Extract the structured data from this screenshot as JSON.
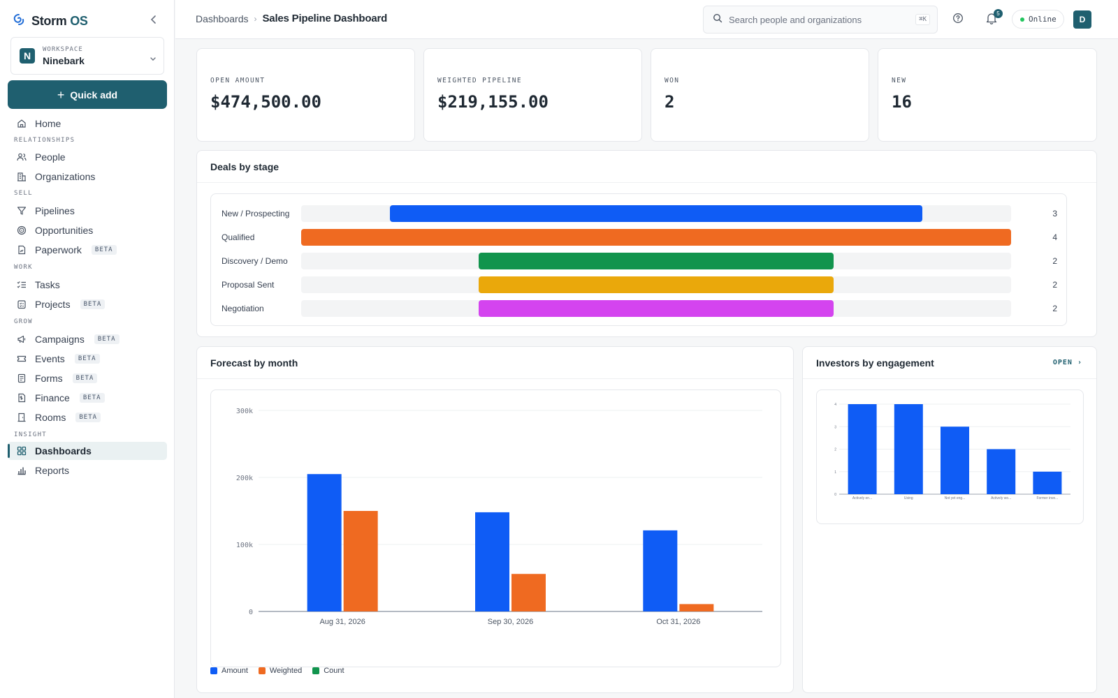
{
  "brand": {
    "name": "Storm",
    "suffix": " OS"
  },
  "workspace": {
    "label": "WORKSPACE",
    "name": "Ninebark",
    "initial": "N"
  },
  "quick_add_label": "Quick add",
  "nav": {
    "home": "Home",
    "sections": {
      "relationships": "RELATIONSHIPS",
      "sell": "SELL",
      "work": "WORK",
      "grow": "GROW",
      "insight": "INSIGHT"
    },
    "items": {
      "people": "People",
      "organizations": "Organizations",
      "pipelines": "Pipelines",
      "opportunities": "Opportunities",
      "paperwork": "Paperwork",
      "tasks": "Tasks",
      "projects": "Projects",
      "campaigns": "Campaigns",
      "events": "Events",
      "forms": "Forms",
      "finance": "Finance",
      "rooms": "Rooms",
      "dashboards": "Dashboards",
      "reports": "Reports"
    },
    "beta_label": "BETA"
  },
  "header": {
    "breadcrumb_parent": "Dashboards",
    "breadcrumb_current": "Sales Pipeline Dashboard",
    "search_placeholder": "Search people and organizations",
    "search_shortcut": "⌘K",
    "notifications_count": "5",
    "status": "Online",
    "avatar_initial": "D"
  },
  "kpis": [
    {
      "label": "OPEN AMOUNT",
      "value": "$474,500.00"
    },
    {
      "label": "WEIGHTED PIPELINE",
      "value": "$219,155.00"
    },
    {
      "label": "WON",
      "value": "2"
    },
    {
      "label": "NEW",
      "value": "16"
    }
  ],
  "deals_by_stage": {
    "title": "Deals by stage",
    "max": 4,
    "stages": [
      {
        "label": "New / Prospecting",
        "count": "3",
        "value": 3,
        "color": "#0f5cf5"
      },
      {
        "label": "Qualified",
        "count": "4",
        "value": 4,
        "color": "#ef6a21"
      },
      {
        "label": "Discovery / Demo",
        "count": "2",
        "value": 2,
        "color": "#11944d"
      },
      {
        "label": "Proposal Sent",
        "count": "2",
        "value": 2,
        "color": "#eaa80b"
      },
      {
        "label": "Negotiation",
        "count": "2",
        "value": 2,
        "color": "#d444ef"
      }
    ]
  },
  "forecast": {
    "title": "Forecast by month",
    "legend": [
      {
        "label": "Amount",
        "color": "#0f5cf5"
      },
      {
        "label": "Weighted",
        "color": "#ef6a21"
      },
      {
        "label": "Count",
        "color": "#11944d"
      }
    ]
  },
  "investors": {
    "title": "Investors by engagement",
    "open_label": "OPEN ›"
  },
  "chart_data": [
    {
      "type": "bar",
      "title": "Forecast by month",
      "categories": [
        "Aug 31, 2026",
        "Sep 30, 2026",
        "Oct 31, 2026"
      ],
      "series": [
        {
          "name": "Amount",
          "values": [
            205000,
            148000,
            121000
          ]
        },
        {
          "name": "Weighted",
          "values": [
            150000,
            56000,
            11000
          ]
        }
      ],
      "yticks": [
        "0",
        "100k",
        "200k",
        "300k"
      ],
      "ylim": [
        0,
        300000
      ],
      "grid": true,
      "legend": "bottom-left"
    },
    {
      "type": "bar",
      "title": "Investors by engagement",
      "categories": [
        "Actively en...",
        "Using",
        "Not yet eng...",
        "Actively wo...",
        "Former inve..."
      ],
      "values": [
        4,
        4,
        3,
        2,
        1
      ],
      "yticks": [
        "0",
        "1",
        "2",
        "3",
        "4"
      ],
      "ylim": [
        0,
        4
      ],
      "grid": true
    }
  ],
  "colors": {
    "primary": "#1f5f6f",
    "amount": "#0f5cf5",
    "weighted": "#ef6a21",
    "count": "#11944d"
  }
}
